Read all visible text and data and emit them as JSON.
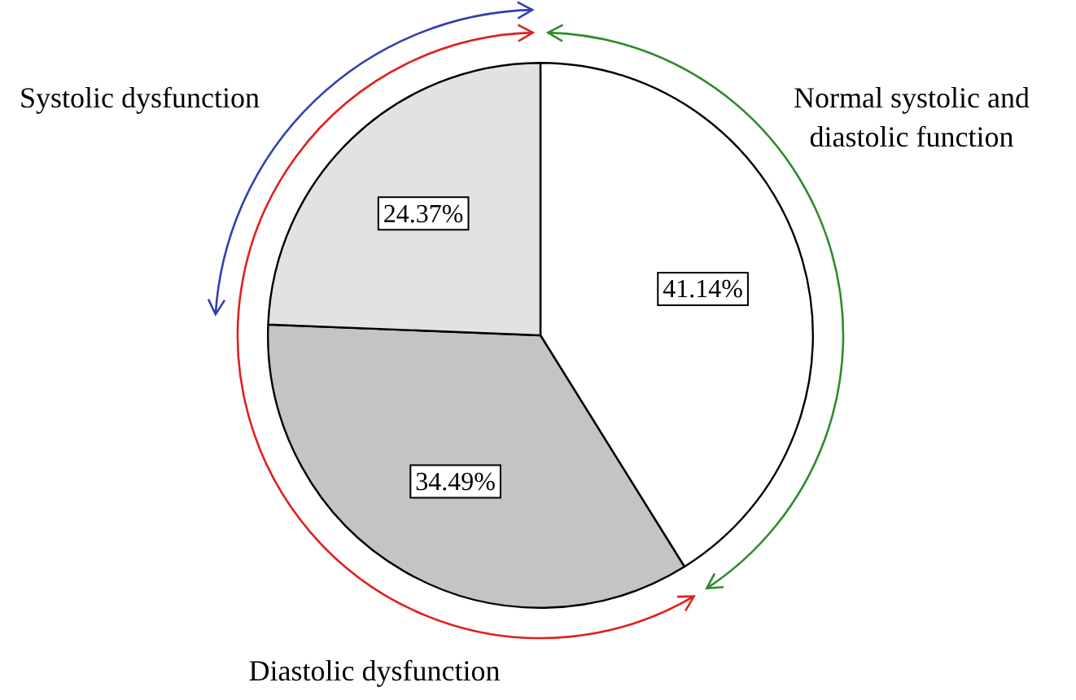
{
  "chart_data": {
    "type": "pie",
    "categories": [
      "Normal systolic and diastolic function",
      "Diastolic dysfunction",
      "Systolic dysfunction"
    ],
    "values": [
      41.14,
      34.49,
      24.37
    ],
    "colors": [
      "#ffffff",
      "#c4c4c4",
      "#e2e2e2"
    ],
    "value_labels": [
      "41.14%",
      "34.49%",
      "24.37%"
    ],
    "legend": false
  }
}
